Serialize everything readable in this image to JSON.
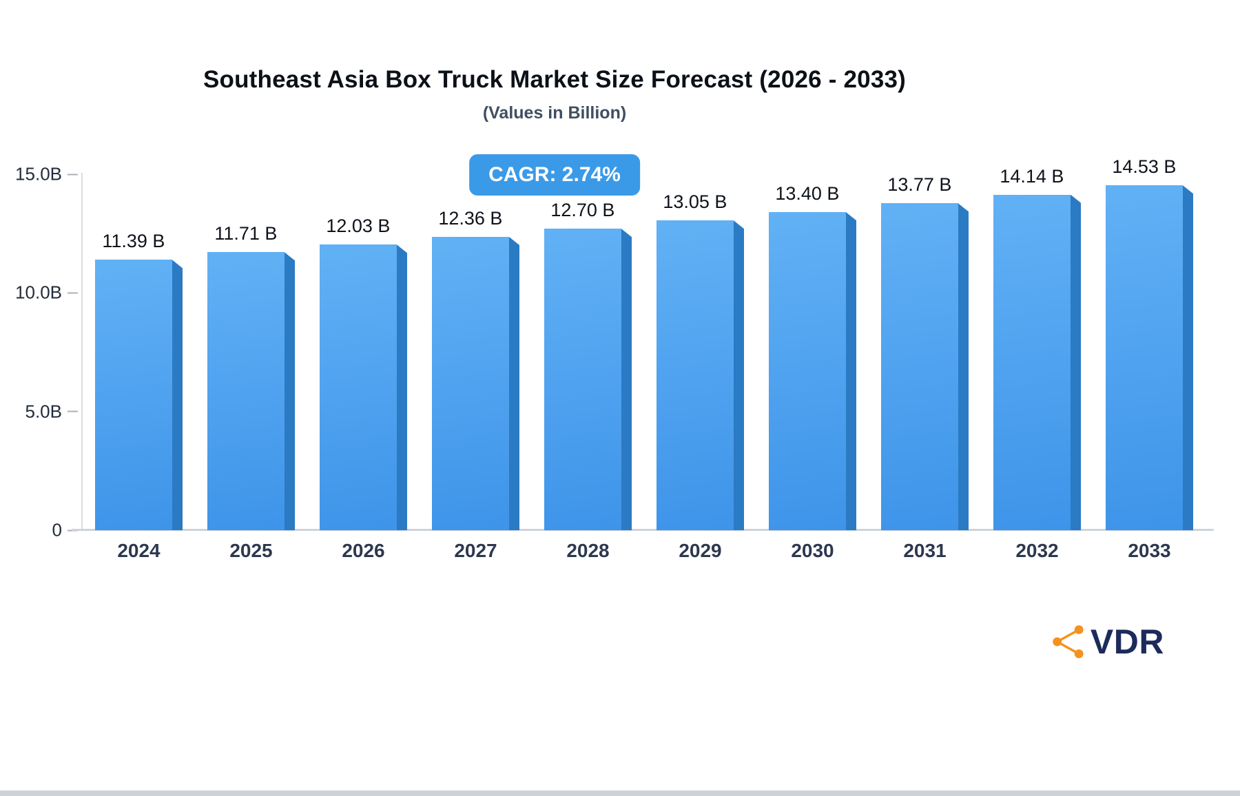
{
  "cagr_badge": {
    "label": "CAGR: 2.74%"
  },
  "logo": {
    "text": "VDR",
    "icon": "share-network-icon",
    "text_color": "#1C2B5C",
    "icon_color": "#F5921E"
  },
  "chart_data": {
    "type": "bar",
    "title": "Southeast Asia Box Truck Market Size Forecast (2026 - 2033)",
    "subtitle": "(Values in Billion)",
    "categories": [
      "2024",
      "2025",
      "2026",
      "2027",
      "2028",
      "2029",
      "2030",
      "2031",
      "2032",
      "2033"
    ],
    "values": [
      11.39,
      11.71,
      12.03,
      12.36,
      12.7,
      13.05,
      13.4,
      13.77,
      14.14,
      14.53
    ],
    "value_labels": [
      "11.39 B",
      "11.71 B",
      "12.03 B",
      "12.36 B",
      "12.70 B",
      "13.05 B",
      "13.40 B",
      "13.77 B",
      "14.14 B",
      "14.53 B"
    ],
    "xlabel": "",
    "ylabel": "",
    "ylim": [
      0,
      15
    ],
    "yticks": [
      {
        "value": 0,
        "label": "0"
      },
      {
        "value": 5,
        "label": "5.0B"
      },
      {
        "value": 10,
        "label": "10.0B"
      },
      {
        "value": 15,
        "label": "15.0B"
      }
    ],
    "grid": false,
    "legend": "none",
    "colors": {
      "bar_gradient_top": "#61B1F5",
      "bar_gradient_bottom": "#3E94E9",
      "bar_side": "#2B7AC4",
      "badge": "#3B9AE8",
      "axis": "#CDD3D9"
    }
  }
}
